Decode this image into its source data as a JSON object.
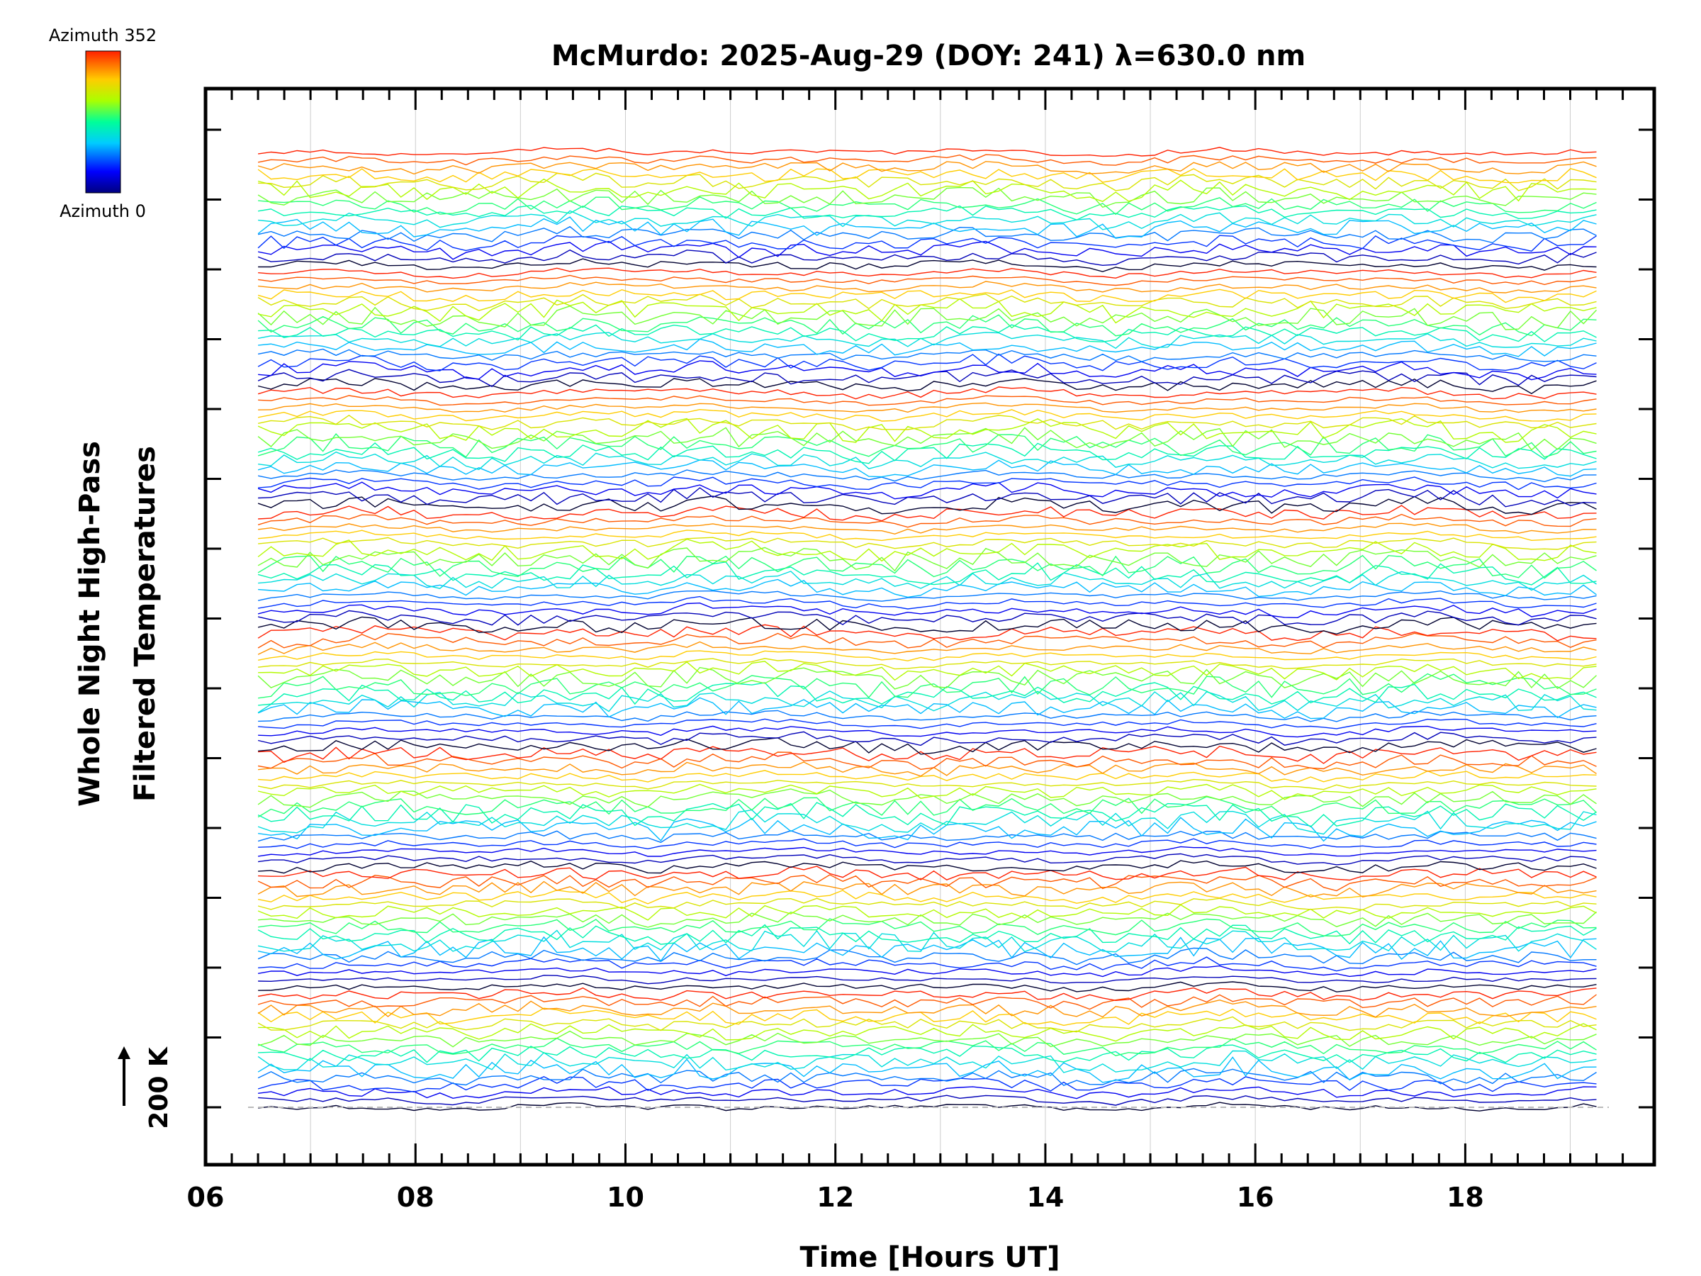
{
  "chart_data": {
    "type": "line",
    "title": "McMurdo: 2025-Aug-29 (DOY: 241) λ=630.0 nm",
    "xlabel": "Time [Hours UT]",
    "ylabel_line1": "Whole Night High-Pass",
    "ylabel_line2": "Filtered Temperatures",
    "xlim": [
      6,
      19.8
    ],
    "x_tick_labels": [
      "06",
      "08",
      "10",
      "12",
      "14",
      "16",
      "18"
    ],
    "x_tick_values": [
      6,
      8,
      10,
      12,
      14,
      16,
      18
    ],
    "time_range_hours": [
      6.5,
      19.25
    ],
    "num_traces": 128,
    "azimuth_range_deg": [
      0,
      352
    ],
    "colorbar": {
      "top_label": "Azimuth 352",
      "bottom_label": "Azimuth 0",
      "colormap": "rainbow"
    },
    "scale_bar_label": "200 K",
    "baseline_style": "dashed",
    "colors": {
      "axis": "#000000",
      "grid": "#cccccc",
      "baseline": "#bbbbbb"
    }
  }
}
